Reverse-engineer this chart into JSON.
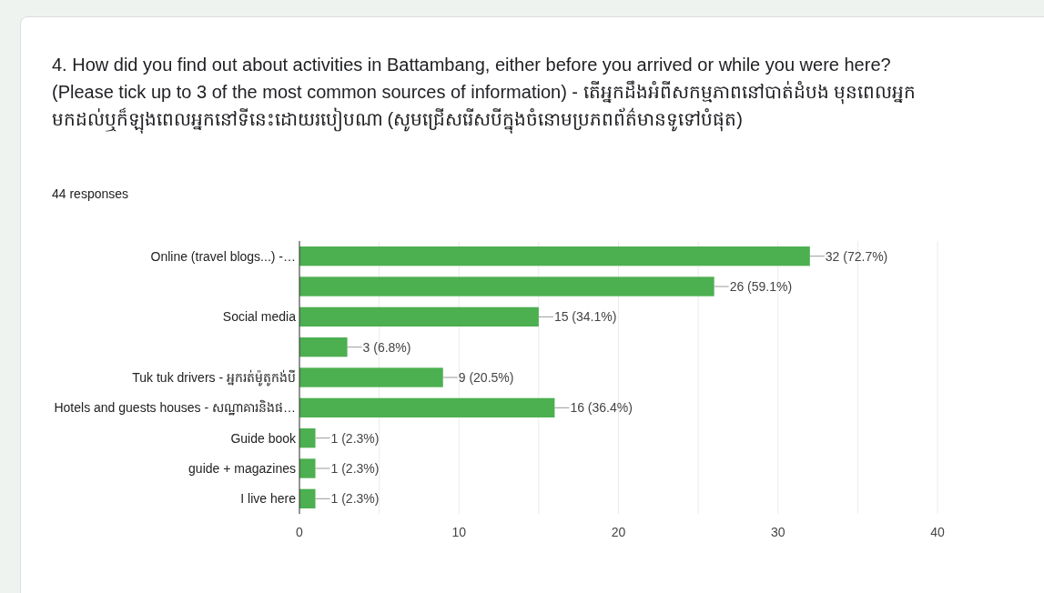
{
  "chart_data": {
    "type": "bar",
    "orientation": "horizontal",
    "title": "4. How did you find out about activities in Battambang, either before you arrived or while you were here? (Please tick up to 3 of the most common sources of information) - តើអ្នកដឹងអំពីសកម្មភាពនៅបាត់ដំបង មុនពេលអ្នកមកដល់ឬក៏ឡុងពេលអ្នកនៅទីនេះដោយរបៀបណា (សូមជ្រើសរើសបីក្នុងចំនោមប្រភពព័ត៌មានទូទៅបំផុត)",
    "subtitle": "44 responses",
    "categories": [
      "Online (travel blogs...) -…",
      null,
      "Social media",
      null,
      "Tuk tuk drivers - អ្នករត់ម៉ូតូកង់បី",
      "Hotels and guests houses - សណ្ឋាគារនិងផ…",
      "Guide book",
      "guide + magazines",
      "I live here"
    ],
    "values": [
      32,
      26,
      15,
      3,
      9,
      16,
      1,
      1,
      1
    ],
    "value_labels": [
      "32 (72.7%)",
      "26 (59.1%)",
      "15 (34.1%)",
      "3 (6.8%)",
      "9 (20.5%)",
      "16 (36.4%)",
      "1 (2.3%)",
      "1 (2.3%)",
      "1 (2.3%)"
    ],
    "color": "#4caf50",
    "xlim": [
      0,
      40
    ],
    "xticks": [
      0,
      {
        "value": 5,
        "label": null
      },
      10,
      {
        "value": 15,
        "label": null
      },
      20,
      {
        "value": 25,
        "label": null
      },
      30,
      {
        "value": 35,
        "label": null
      },
      40
    ],
    "grid": "x"
  }
}
